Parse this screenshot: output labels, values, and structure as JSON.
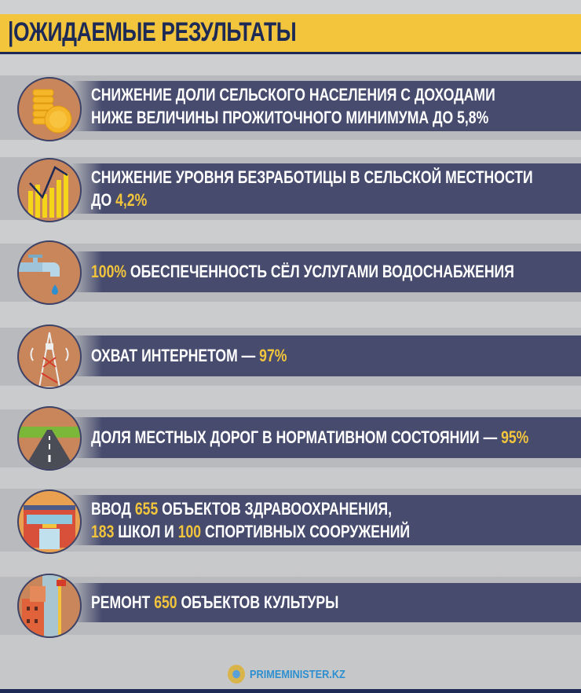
{
  "header": {
    "title": "ОЖИДАЕМЫЕ РЕЗУЛЬТАТЫ"
  },
  "colors": {
    "accent": "#f2c53d",
    "bar": "#474c6e",
    "navy": "#1d2a55"
  },
  "items": [
    {
      "icon": "coins-icon",
      "line1": "СНИЖЕНИЕ ДОЛИ СЕЛЬСКОГО НАСЕЛЕНИЯ С ДОХОДАМИ",
      "line2": "НИЖЕ ВЕЛИЧИНЫ ПРОЖИТОЧНОГО МИНИМУМА ДО 5,8%"
    },
    {
      "icon": "declining-chart-icon",
      "line1": "СНИЖЕНИЕ УРОВНЯ БЕЗРАБОТИЦЫ В СЕЛЬСКОЙ МЕСТНОСТИ",
      "line2_pre": "ДО ",
      "line2_hl": "4,2%"
    },
    {
      "icon": "water-tap-icon",
      "hl": "100%",
      "text": " ОБЕСПЕЧЕННОСТЬ СЁЛ УСЛУГАМИ ВОДОСНАБЖЕНИЯ"
    },
    {
      "icon": "antenna-tower-icon",
      "text": "ОХВАТ ИНТЕРНЕТОМ — ",
      "hl": "97%"
    },
    {
      "icon": "road-icon",
      "text": "ДОЛЯ МЕСТНЫХ ДОРОГ В НОРМАТИВНОМ СОСТОЯНИИ — ",
      "hl": "95%"
    },
    {
      "icon": "hospital-building-icon",
      "l1a": "ВВОД ",
      "l1b": "655",
      "l1c": " ОБЪЕКТОВ ЗДРАВООХРАНЕНИЯ,",
      "l2a": "183",
      "l2b": " ШКОЛ И ",
      "l2c": "100",
      "l2d": " СПОРТИВНЫХ СООРУЖЕНИЙ"
    },
    {
      "icon": "buildings-construction-icon",
      "a": "РЕМОНТ ",
      "hl": "650",
      "b": " ОБЪЕКТОВ КУЛЬТУРЫ"
    }
  ],
  "footer": {
    "brand": "PRIMEMINISTER.KZ",
    "logo_icon": "kazakhstan-emblem-icon"
  }
}
